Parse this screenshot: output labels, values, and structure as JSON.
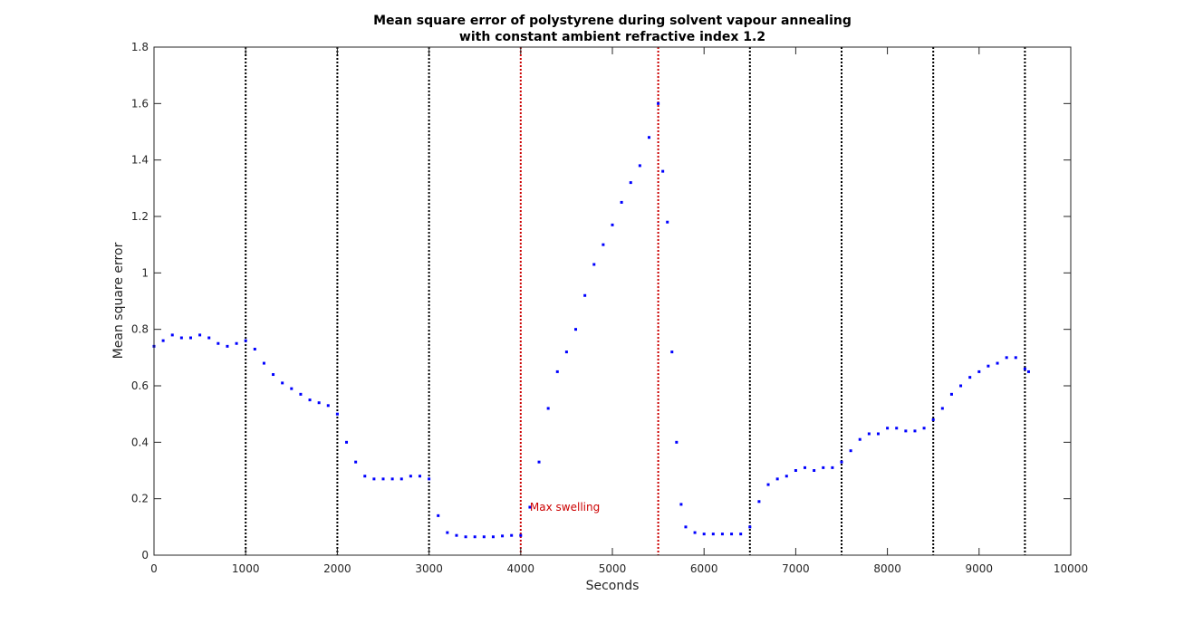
{
  "chart_data": {
    "type": "scatter",
    "title": "Mean square error of polystyrene during solvent vapour annealing",
    "subtitle": "with constant ambient refractive index 1.2",
    "xlabel": "Seconds",
    "ylabel": "Mean square error",
    "xlim": [
      0,
      10000
    ],
    "ylim": [
      0,
      1.8
    ],
    "x_ticks": [
      "0",
      "1000",
      "2000",
      "3000",
      "4000",
      "5000",
      "6000",
      "7000",
      "8000",
      "9000",
      "10000"
    ],
    "y_ticks": [
      "0",
      "0.2",
      "0.4",
      "0.6",
      "0.8",
      "1",
      "1.2",
      "1.4",
      "1.6",
      "1.8"
    ],
    "x_tick_values": [
      0,
      1000,
      2000,
      3000,
      4000,
      5000,
      6000,
      7000,
      8000,
      9000,
      10000
    ],
    "y_tick_values": [
      0,
      0.2,
      0.4,
      0.6,
      0.8,
      1.0,
      1.2,
      1.4,
      1.6,
      1.8
    ],
    "grid": false,
    "legend": "none",
    "marker_color": "#0000ff",
    "vertical_lines": [
      {
        "x": 1000,
        "color": "#000000"
      },
      {
        "x": 2000,
        "color": "#000000"
      },
      {
        "x": 3000,
        "color": "#000000"
      },
      {
        "x": 4000,
        "color": "#cc0000"
      },
      {
        "x": 5500,
        "color": "#cc0000"
      },
      {
        "x": 6500,
        "color": "#000000"
      },
      {
        "x": 7500,
        "color": "#000000"
      },
      {
        "x": 8500,
        "color": "#000000"
      },
      {
        "x": 9500,
        "color": "#000000"
      }
    ],
    "annotation": {
      "text": "Max swelling",
      "x": 4100,
      "y": 0.17,
      "color": "#cc0000"
    },
    "series": [
      {
        "x": [
          0,
          100,
          200,
          300,
          400,
          500,
          600,
          700,
          800,
          900,
          1000,
          1100,
          1200,
          1300,
          1400,
          1500,
          1600,
          1700,
          1800,
          1900,
          2000,
          2100,
          2200,
          2300,
          2400,
          2500,
          2600,
          2700,
          2800,
          2900,
          3000,
          3100,
          3200,
          3300,
          3400,
          3500,
          3600,
          3700,
          3800,
          3900,
          4000,
          4100,
          4200,
          4300,
          4400,
          4500,
          4600,
          4700,
          4800,
          4900,
          5000,
          5100,
          5200,
          5300,
          5400,
          5500,
          5550,
          5600,
          5650,
          5700,
          5750,
          5800,
          5900,
          6000,
          6100,
          6200,
          6300,
          6400,
          6500,
          6600,
          6700,
          6800,
          6900,
          7000,
          7100,
          7200,
          7300,
          7400,
          7500,
          7600,
          7700,
          7800,
          7900,
          8000,
          8100,
          8200,
          8300,
          8400,
          8500,
          8600,
          8700,
          8800,
          8900,
          9000,
          9100,
          9200,
          9300,
          9400,
          9500,
          9540
        ],
        "y": [
          0.74,
          0.76,
          0.78,
          0.77,
          0.77,
          0.78,
          0.77,
          0.75,
          0.74,
          0.75,
          0.76,
          0.73,
          0.68,
          0.64,
          0.61,
          0.59,
          0.57,
          0.55,
          0.54,
          0.53,
          0.5,
          0.4,
          0.33,
          0.28,
          0.27,
          0.27,
          0.27,
          0.27,
          0.28,
          0.28,
          0.27,
          0.14,
          0.08,
          0.07,
          0.065,
          0.065,
          0.065,
          0.065,
          0.068,
          0.07,
          0.07,
          0.17,
          0.33,
          0.52,
          0.65,
          0.72,
          0.8,
          0.92,
          1.03,
          1.1,
          1.17,
          1.25,
          1.32,
          1.38,
          1.48,
          1.6,
          1.36,
          1.18,
          0.72,
          0.4,
          0.18,
          0.1,
          0.08,
          0.075,
          0.075,
          0.075,
          0.075,
          0.075,
          0.1,
          0.19,
          0.25,
          0.27,
          0.28,
          0.3,
          0.31,
          0.3,
          0.31,
          0.31,
          0.33,
          0.37,
          0.41,
          0.43,
          0.43,
          0.45,
          0.45,
          0.44,
          0.44,
          0.45,
          0.48,
          0.52,
          0.57,
          0.6,
          0.63,
          0.65,
          0.67,
          0.68,
          0.7,
          0.7,
          0.66,
          0.65
        ]
      }
    ]
  }
}
